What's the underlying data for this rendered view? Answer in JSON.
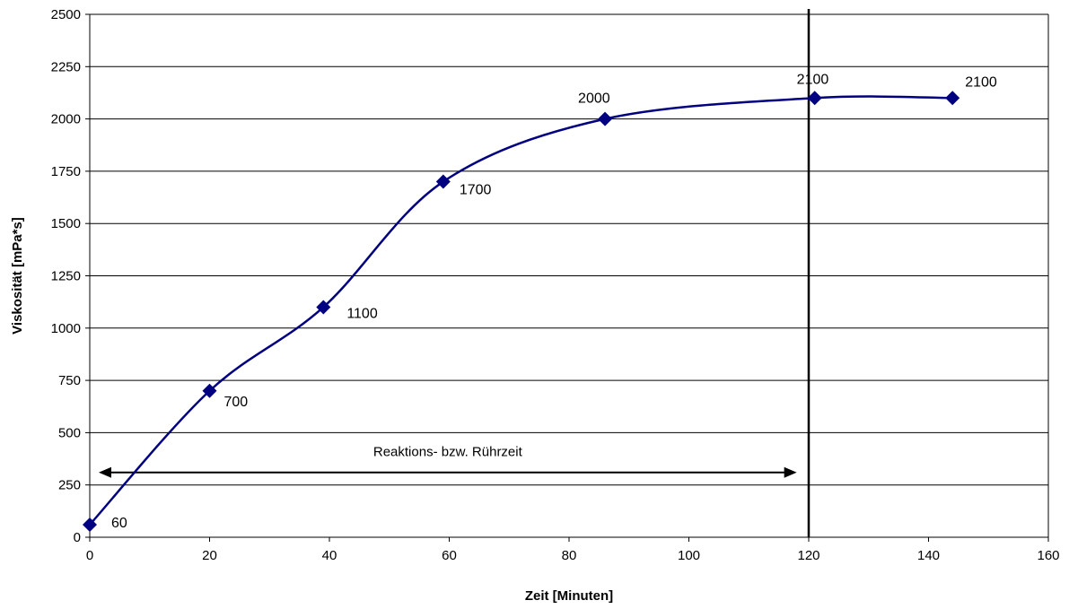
{
  "chart_data": {
    "type": "line",
    "title": "",
    "xlabel": "Zeit [Minuten]",
    "ylabel": "Viskosität [mPa*s]",
    "xlim": [
      0,
      160
    ],
    "ylim": [
      0,
      2500
    ],
    "x_ticks": [
      0,
      20,
      40,
      60,
      80,
      100,
      120,
      140,
      160
    ],
    "y_ticks": [
      0,
      250,
      500,
      750,
      1000,
      1250,
      1500,
      1750,
      2000,
      2250,
      2500
    ],
    "grid": "horizontal",
    "legend": "none",
    "series": [
      {
        "marker": "diamond",
        "color": "#000080",
        "smooth": true,
        "points": [
          {
            "x": 0,
            "y": 60,
            "label": "60"
          },
          {
            "x": 20,
            "y": 700,
            "label": "700"
          },
          {
            "x": 39,
            "y": 1100,
            "label": "1100"
          },
          {
            "x": 59,
            "y": 1700,
            "label": "1700"
          },
          {
            "x": 86,
            "y": 2000,
            "label": "2000"
          },
          {
            "x": 121,
            "y": 2100,
            "label": "2100"
          },
          {
            "x": 144,
            "y": 2100,
            "label": "2100"
          }
        ]
      }
    ],
    "vertical_marker": {
      "x": 120
    },
    "annotation": {
      "text": "Reaktions- bzw. Rührzeit",
      "x_start": 1.5,
      "x_end": 118,
      "y": 310
    }
  }
}
